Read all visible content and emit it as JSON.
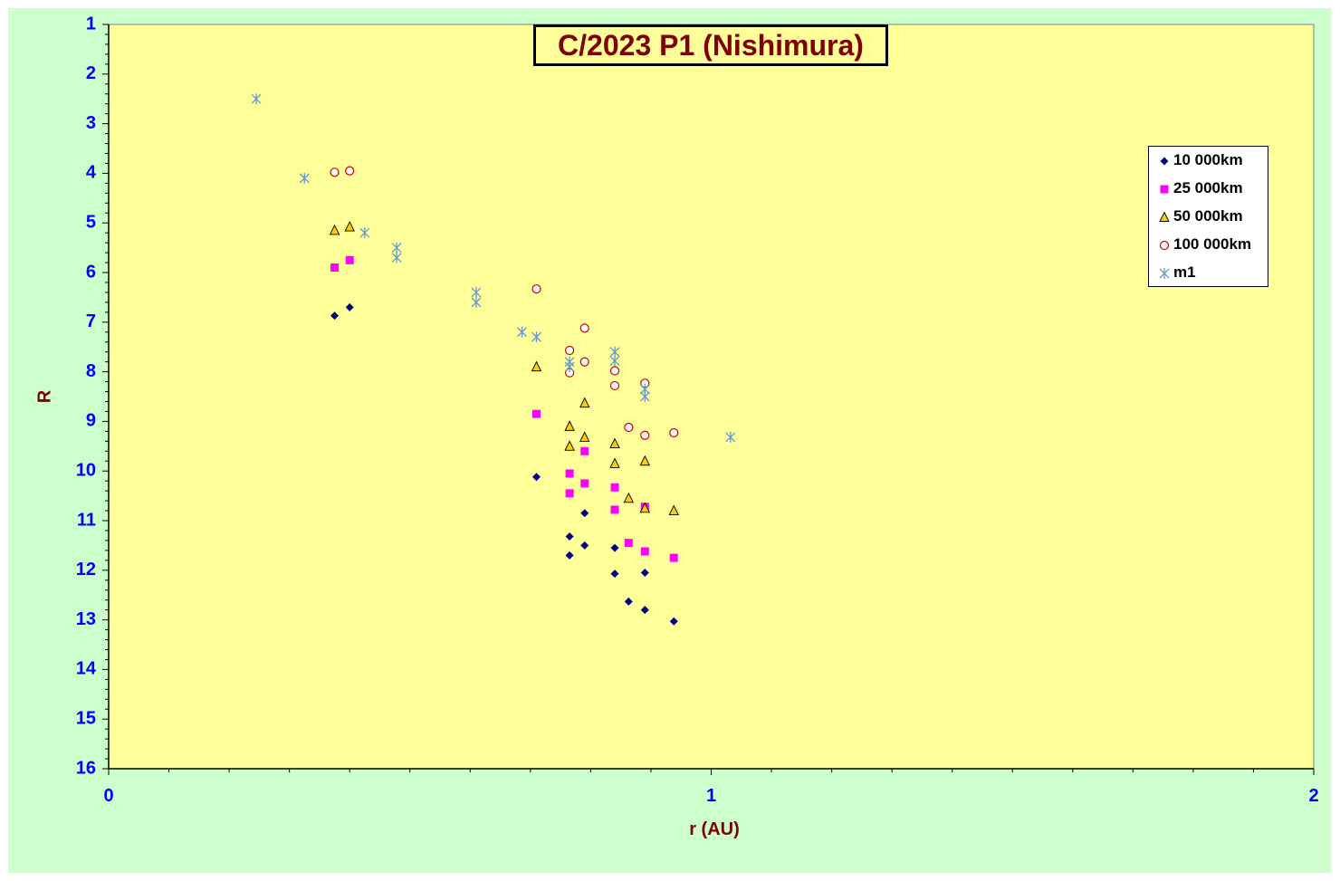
{
  "chart_data": {
    "type": "scatter",
    "title": "C/2023 P1 (Nishimura)",
    "xlabel": "r (AU)",
    "ylabel": "R",
    "xlim": [
      0,
      2
    ],
    "ylim": [
      1,
      16
    ],
    "y_inverted": true,
    "x_ticks": [
      "0",
      "1",
      "2"
    ],
    "y_ticks": [
      "1",
      "2",
      "3",
      "4",
      "5",
      "6",
      "7",
      "8",
      "9",
      "10",
      "11",
      "12",
      "13",
      "14",
      "15",
      "16"
    ],
    "grid": false,
    "legend_position": "top-right",
    "plot_background": "#ffff99",
    "chart_background": "#ccffcc",
    "series": [
      {
        "name": "10 000km",
        "marker": "diamond",
        "color": "#000080",
        "x": [
          0.375,
          0.4,
          0.71,
          0.765,
          0.765,
          0.79,
          0.79,
          0.84,
          0.84,
          0.863,
          0.89,
          0.89,
          0.938
        ],
        "y": [
          6.87,
          6.7,
          10.12,
          11.32,
          11.7,
          10.85,
          11.5,
          11.55,
          12.07,
          12.63,
          12.8,
          12.05,
          13.03
        ]
      },
      {
        "name": "25 000km",
        "marker": "square",
        "color": "#ff00ff",
        "x": [
          0.375,
          0.4,
          0.71,
          0.765,
          0.765,
          0.79,
          0.79,
          0.84,
          0.84,
          0.863,
          0.89,
          0.89,
          0.938
        ],
        "y": [
          5.9,
          5.75,
          8.85,
          10.05,
          10.45,
          9.6,
          10.25,
          10.33,
          10.78,
          11.45,
          11.62,
          10.72,
          11.75
        ]
      },
      {
        "name": "50 000km",
        "marker": "triangle",
        "color": "#ffcc00",
        "x": [
          0.375,
          0.4,
          0.71,
          0.765,
          0.765,
          0.79,
          0.79,
          0.84,
          0.84,
          0.863,
          0.89,
          0.89,
          0.938
        ],
        "y": [
          5.15,
          5.08,
          7.9,
          9.1,
          9.5,
          8.63,
          9.32,
          9.45,
          9.85,
          10.55,
          10.75,
          9.8,
          10.8
        ]
      },
      {
        "name": "100 000km",
        "marker": "circle",
        "color": "#cc0000",
        "x": [
          0.375,
          0.4,
          0.71,
          0.765,
          0.765,
          0.79,
          0.79,
          0.84,
          0.84,
          0.863,
          0.89,
          0.89,
          0.938
        ],
        "y": [
          3.98,
          3.95,
          6.33,
          7.57,
          8.02,
          7.12,
          7.8,
          7.98,
          8.28,
          9.12,
          9.28,
          8.23,
          9.23
        ]
      },
      {
        "name": "m1",
        "marker": "asterisk",
        "color": "#6699cc",
        "x": [
          0.245,
          0.325,
          0.425,
          0.478,
          0.478,
          0.61,
          0.61,
          0.686,
          0.71,
          0.765,
          0.765,
          0.84,
          0.84,
          0.89,
          0.89,
          1.032
        ],
        "y": [
          2.5,
          4.1,
          5.2,
          5.5,
          5.7,
          6.4,
          6.6,
          7.2,
          7.3,
          7.8,
          7.9,
          7.6,
          7.78,
          8.35,
          8.5,
          9.32
        ]
      }
    ]
  }
}
